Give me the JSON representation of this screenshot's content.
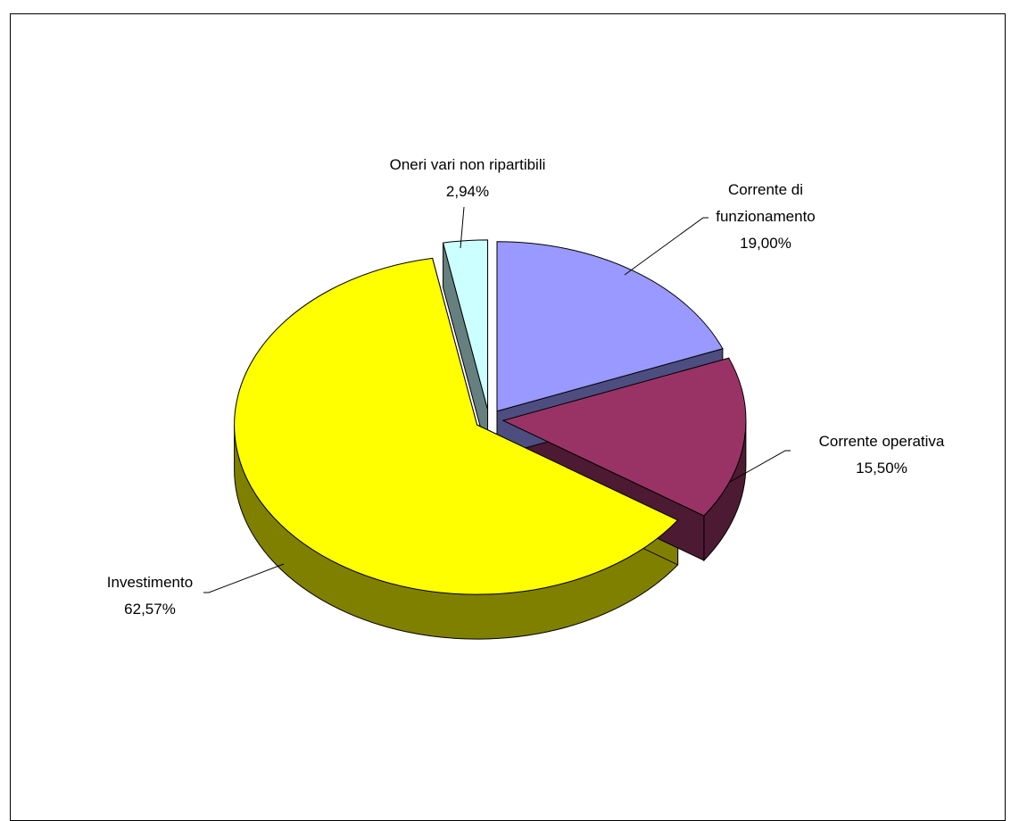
{
  "chart_data": {
    "type": "pie",
    "style": "3d-exploded",
    "title": "",
    "slices": [
      {
        "label_lines": [
          "Corrente di",
          "funzionamento"
        ],
        "pct_text": "19,00%",
        "value": 19.0,
        "color": "#9999ff",
        "side_color": "#4d4d80"
      },
      {
        "label_lines": [
          "Corrente operativa"
        ],
        "pct_text": "15,50%",
        "value": 15.5,
        "color": "#993366",
        "side_color": "#4d1a33"
      },
      {
        "label_lines": [
          "Investimento"
        ],
        "pct_text": "62,57%",
        "value": 62.57,
        "color": "#ffff00",
        "side_color": "#808000"
      },
      {
        "label_lines": [
          "Oneri vari non ripartibili"
        ],
        "pct_text": "2,94%",
        "value": 2.94,
        "color": "#ccffff",
        "side_color": "#668080"
      }
    ]
  }
}
